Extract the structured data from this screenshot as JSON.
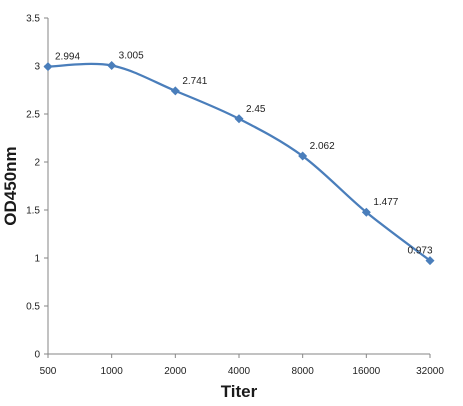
{
  "chart_data": {
    "type": "line",
    "title": "",
    "xlabel": "Titer",
    "ylabel": "OD450nm",
    "categories": [
      "500",
      "1000",
      "2000",
      "4000",
      "8000",
      "16000",
      "32000"
    ],
    "series": [
      {
        "values": [
          2.994,
          3.005,
          2.741,
          2.45,
          2.062,
          1.477,
          0.973
        ]
      }
    ],
    "data_labels": [
      "2.994",
      "3.005",
      "2.741",
      "2.45",
      "2.062",
      "1.477",
      "0.973"
    ],
    "ylim": [
      0,
      3.5
    ],
    "yticks": [
      0,
      0.5,
      1,
      1.5,
      2,
      2.5,
      3,
      3.5
    ],
    "ytick_labels": [
      "0",
      "0.5",
      "1",
      "1.5",
      "2",
      "2.5",
      "3",
      "3.5"
    ],
    "grid": false,
    "legend": "none",
    "marker": "diamond",
    "smooth": true,
    "line_color": "#4a7ebb",
    "marker_color": "#4a7ebb",
    "axis_color": "#868686"
  }
}
